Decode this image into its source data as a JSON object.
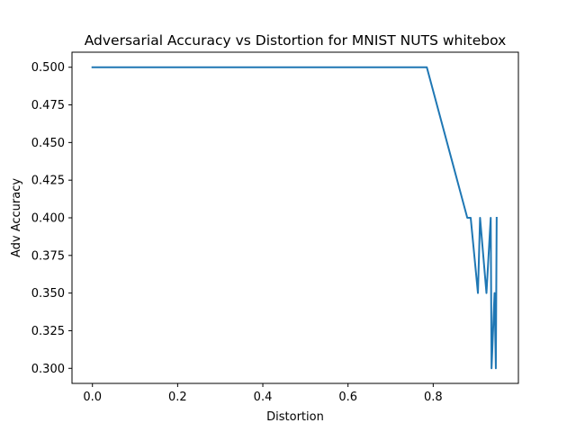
{
  "chart_data": {
    "type": "line",
    "title": "Adversarial Accuracy vs Distortion for MNIST NUTS whitebox",
    "xlabel": "Distortion",
    "ylabel": "Adv Accuracy",
    "xlim": [
      -0.048,
      1.0
    ],
    "ylim": [
      0.29,
      0.51
    ],
    "xticks": [
      0.0,
      0.2,
      0.4,
      0.6,
      0.8
    ],
    "xtick_labels": [
      "0.0",
      "0.2",
      "0.4",
      "0.6",
      "0.8"
    ],
    "yticks": [
      0.3,
      0.325,
      0.35,
      0.375,
      0.4,
      0.425,
      0.45,
      0.475,
      0.5
    ],
    "ytick_labels": [
      "0.300",
      "0.325",
      "0.350",
      "0.375",
      "0.400",
      "0.425",
      "0.450",
      "0.475",
      "0.500"
    ],
    "grid": false,
    "series": [
      {
        "color": "#1f77b4",
        "x": [
          0.0,
          0.785,
          0.88,
          0.888,
          0.905,
          0.91,
          0.925,
          0.935,
          0.937,
          0.944,
          0.947,
          0.949
        ],
        "y": [
          0.5,
          0.5,
          0.4,
          0.4,
          0.35,
          0.4,
          0.35,
          0.4,
          0.3,
          0.35,
          0.3,
          0.4
        ]
      }
    ]
  }
}
